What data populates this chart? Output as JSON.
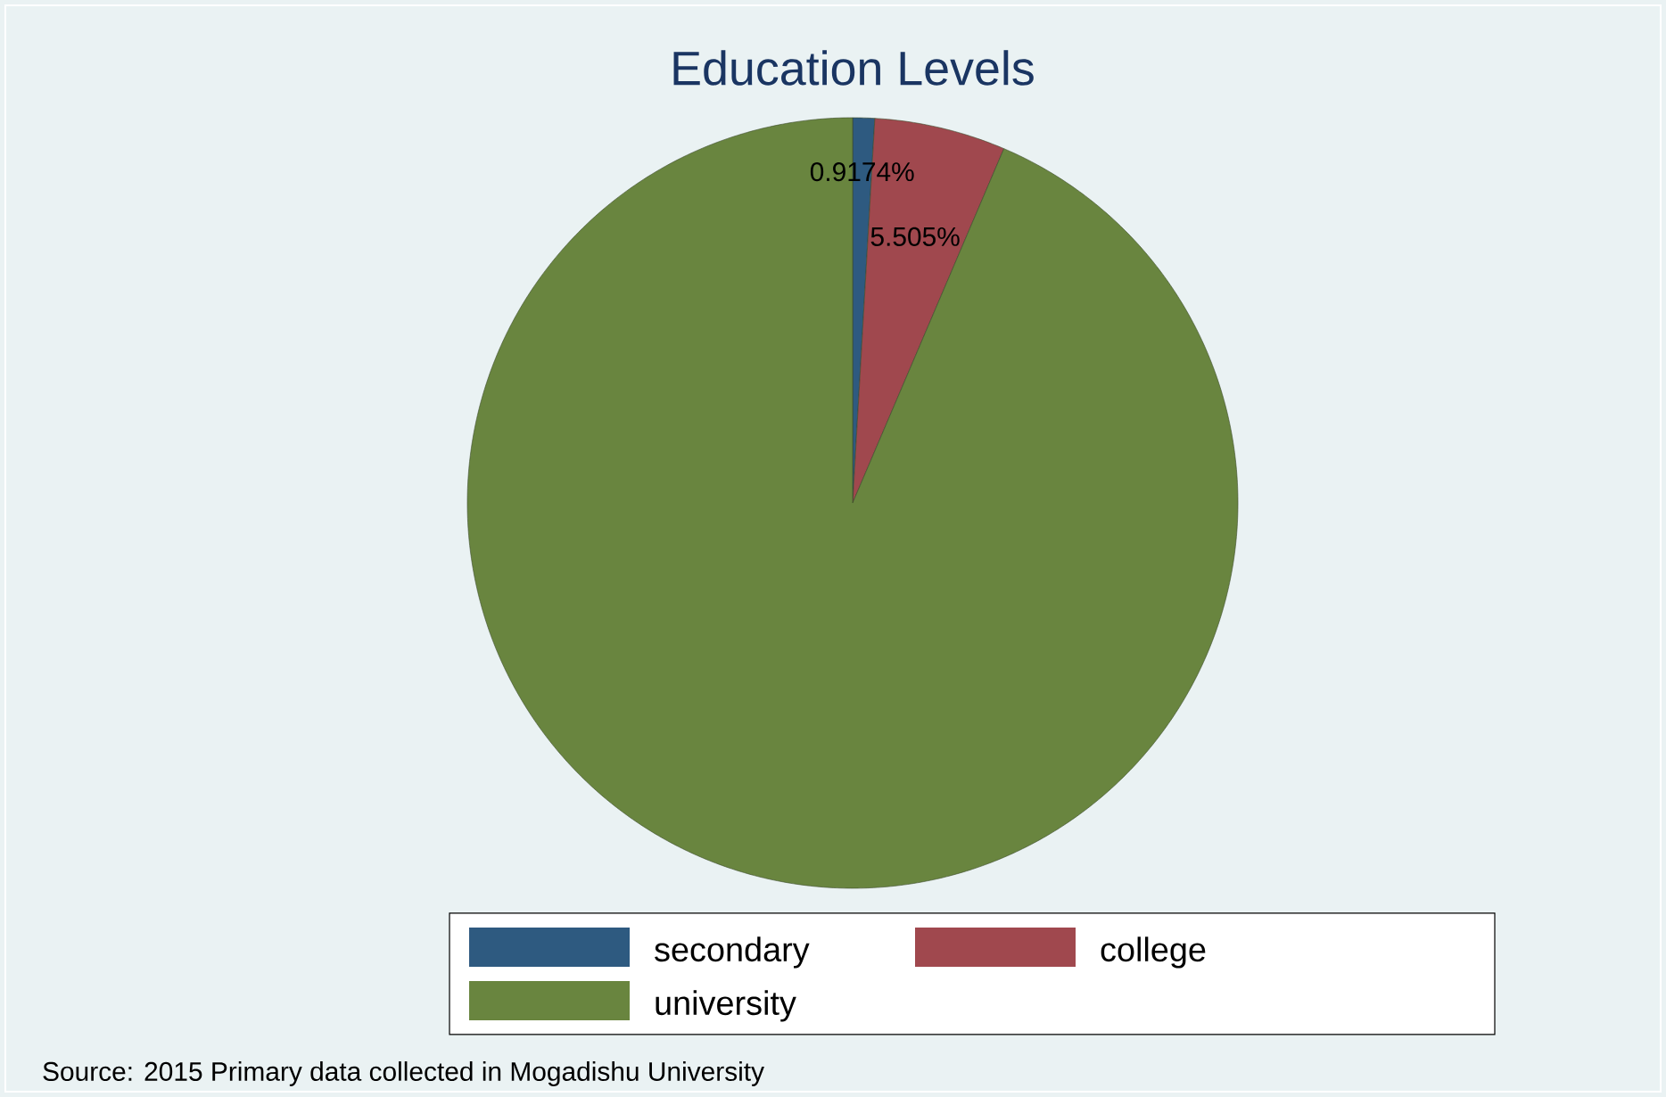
{
  "chart_data": {
    "type": "pie",
    "title": "Education Levels",
    "categories": [
      "secondary",
      "college",
      "university"
    ],
    "values": [
      0.9174,
      5.505,
      93.5776
    ],
    "value_labels": [
      "0.9174%",
      "5.505%",
      null
    ],
    "colors": [
      "#2e5a80",
      "#a0484e",
      "#69853f"
    ],
    "legend": "bottom",
    "annotations": [
      "Source:  2015 Primary data collected in Mogadishu University"
    ]
  }
}
